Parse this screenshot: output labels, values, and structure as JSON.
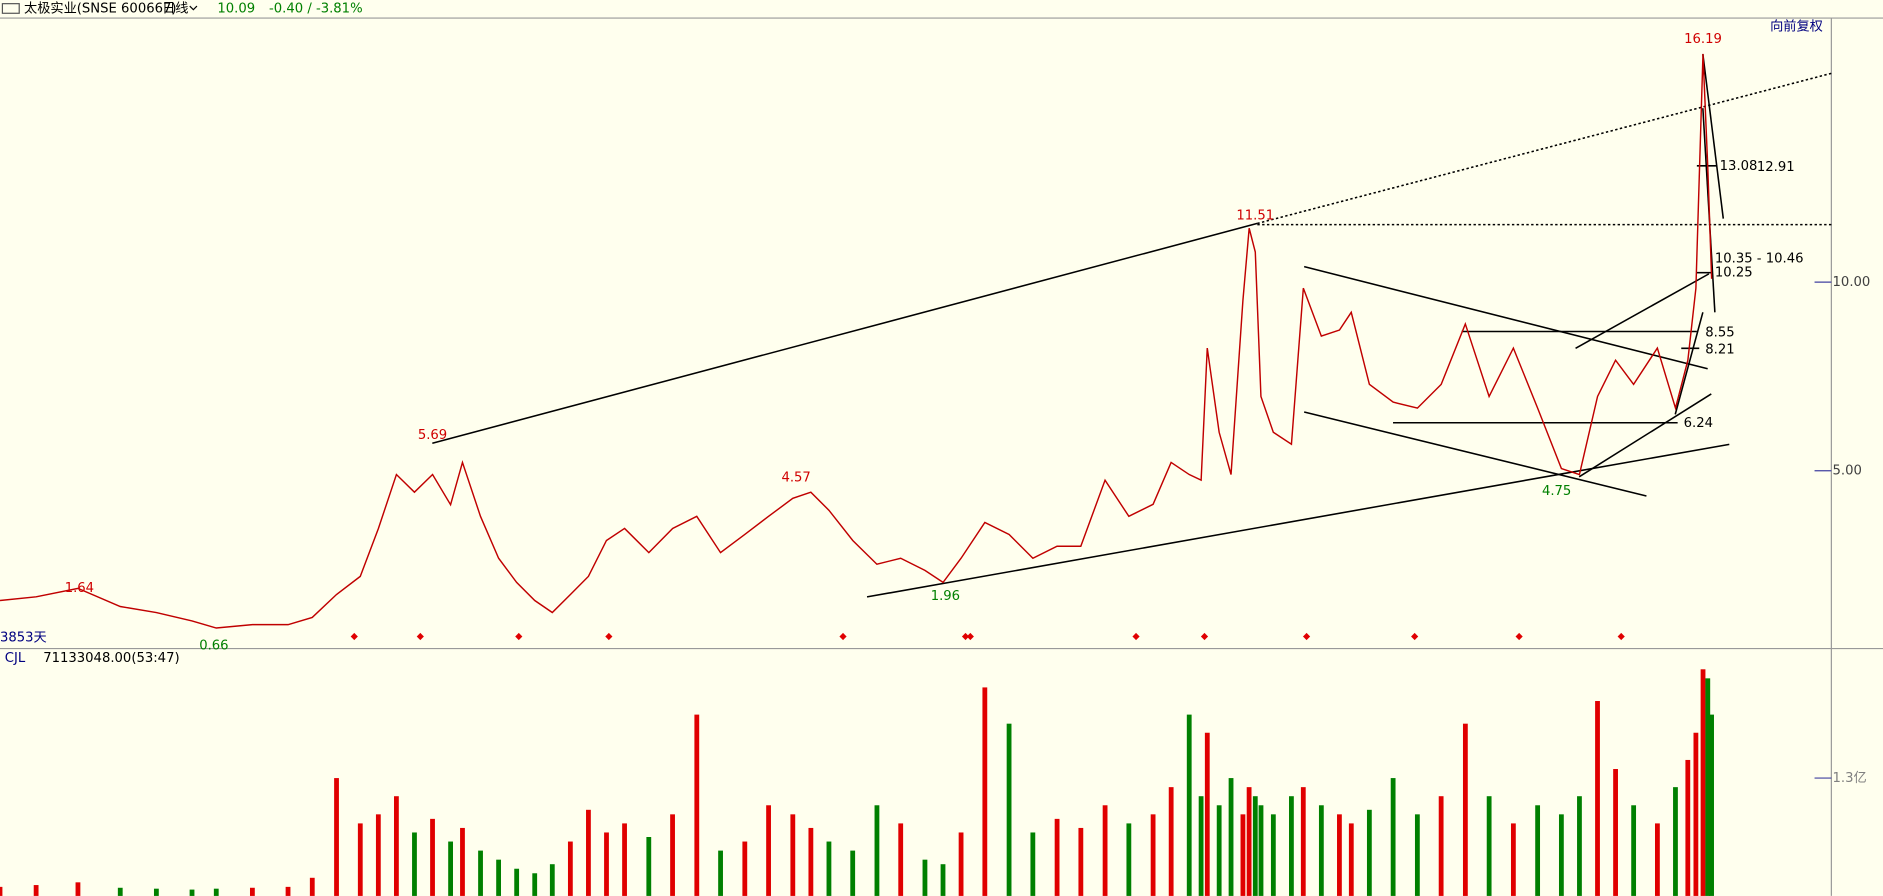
{
  "header": {
    "stock": "太极实业(SNSE 600667)",
    "period": "日线",
    "price": 10.09,
    "change": "-0.40 / -3.81%",
    "adjust": "向前复权",
    "span": "3853天"
  },
  "chart_data": [
    {
      "type": "line",
      "color": "#c00000",
      "up_color": "#e00000",
      "down_color": "#008000",
      "x": [
        0,
        76,
        164,
        253,
        329,
        404,
        455,
        531,
        606,
        657,
        708,
        758,
        796,
        834,
        872,
        910,
        948,
        973,
        1011,
        1049,
        1087,
        1125,
        1162,
        1200,
        1238,
        1276,
        1314,
        1365,
        1415,
        1466,
        1516,
        1567,
        1617,
        1668,
        1706,
        1744,
        1794,
        1845,
        1895,
        1946,
        1984,
        2022,
        2072,
        2123,
        2173,
        2224,
        2274,
        2325,
        2375,
        2426,
        2464,
        2502,
        2527,
        2540,
        2565,
        2590,
        2615,
        2628,
        2641,
        2653,
        2679,
        2717,
        2742,
        2780,
        2818,
        2843,
        2881,
        2931,
        2982,
        3032,
        3083,
        3133,
        3184,
        3235,
        3285,
        3323,
        3361,
        3399,
        3437,
        3487,
        3525,
        3551,
        3568,
        3583,
        3593,
        3601
      ],
      "values": [
        1.56,
        1.66,
        1.88,
        1.4,
        1.24,
        1.02,
        0.83,
        0.92,
        0.92,
        1.11,
        1.72,
        2.2,
        3.47,
        4.9,
        4.43,
        4.9,
        4.1,
        5.22,
        3.79,
        2.68,
        2.04,
        1.56,
        1.24,
        1.72,
        2.2,
        3.15,
        3.47,
        2.83,
        3.47,
        3.79,
        2.83,
        3.31,
        3.79,
        4.27,
        4.43,
        3.95,
        3.15,
        2.52,
        2.68,
        2.36,
        2.04,
        2.68,
        3.63,
        3.31,
        2.68,
        3.0,
        3.0,
        4.75,
        3.79,
        4.11,
        5.22,
        4.9,
        4.75,
        8.25,
        6.02,
        4.9,
        9.52,
        11.43,
        10.8,
        6.97,
        6.02,
        5.7,
        9.84,
        8.57,
        8.73,
        9.2,
        7.29,
        6.82,
        6.66,
        7.29,
        8.89,
        6.97,
        8.25,
        6.66,
        5.06,
        4.9,
        6.97,
        7.93,
        7.29,
        8.25,
        6.66,
        7.93,
        9.84,
        16.05,
        13.03,
        10.09
      ],
      "xlim": [
        0,
        3853
      ],
      "ylim": [
        0.35,
        17
      ],
      "yticks": [
        {
          "value": 10,
          "label": "10.00"
        },
        {
          "value": 5,
          "label": "5.00"
        }
      ],
      "grid": false,
      "price_labels": [
        {
          "x": 3583,
          "value": 16.19,
          "color": "#d00000"
        },
        {
          "x": 2641,
          "value": 11.51,
          "color": "#d00000"
        },
        {
          "x": 910,
          "value": 5.69,
          "color": "#d00000"
        },
        {
          "x": 1675,
          "value": 4.57,
          "color": "#d00000"
        },
        {
          "x": 167,
          "value": 1.64,
          "color": "#d00000"
        },
        {
          "x": 450,
          "value": 0.66,
          "color": "#008000"
        },
        {
          "x": 1989,
          "value": 1.96,
          "color": "#008000"
        },
        {
          "x": 3275,
          "value": 4.75,
          "color": "#008000"
        }
      ],
      "level_labels": [
        "13.08",
        "12.91",
        "10.35 - 10.46",
        "10.25",
        "8.55",
        "8.21",
        "6.24"
      ]
    },
    {
      "type": "bar",
      "title": "CJL",
      "subtitle": "71133048.00(53:47)",
      "x": [
        0,
        76,
        164,
        253,
        329,
        404,
        455,
        531,
        606,
        657,
        708,
        758,
        796,
        834,
        872,
        910,
        948,
        973,
        1011,
        1049,
        1087,
        1125,
        1162,
        1200,
        1238,
        1276,
        1314,
        1365,
        1415,
        1466,
        1516,
        1567,
        1617,
        1668,
        1706,
        1744,
        1794,
        1845,
        1895,
        1946,
        1984,
        2022,
        2072,
        2123,
        2173,
        2224,
        2274,
        2325,
        2375,
        2426,
        2464,
        2502,
        2527,
        2540,
        2565,
        2590,
        2615,
        2628,
        2641,
        2653,
        2679,
        2717,
        2742,
        2780,
        2818,
        2843,
        2881,
        2931,
        2982,
        3032,
        3083,
        3133,
        3184,
        3235,
        3285,
        3323,
        3361,
        3399,
        3437,
        3487,
        3525,
        3551,
        3568,
        3583,
        3593,
        3601
      ],
      "values": [
        10000000,
        12000000,
        15000000,
        9000000,
        8000000,
        7000000,
        8000000,
        9000000,
        10000000,
        20000000,
        130000000,
        80000000,
        90000000,
        110000000,
        70000000,
        85000000,
        60000000,
        75000000,
        50000000,
        40000000,
        30000000,
        25000000,
        35000000,
        60000000,
        95000000,
        70000000,
        80000000,
        65000000,
        90000000,
        200000000,
        50000000,
        60000000,
        100000000,
        90000000,
        75000000,
        60000000,
        50000000,
        100000000,
        80000000,
        40000000,
        35000000,
        70000000,
        230000000,
        190000000,
        70000000,
        85000000,
        75000000,
        100000000,
        80000000,
        90000000,
        120000000,
        200000000,
        110000000,
        180000000,
        100000000,
        130000000,
        90000000,
        120000000,
        110000000,
        100000000,
        90000000,
        110000000,
        120000000,
        100000000,
        90000000,
        80000000,
        95000000,
        130000000,
        90000000,
        110000000,
        190000000,
        110000000,
        80000000,
        100000000,
        90000000,
        110000000,
        215000000,
        140000000,
        100000000,
        80000000,
        120000000,
        150000000,
        180000000,
        250000000,
        240000000,
        200000000
      ],
      "xlim": [
        0,
        3853
      ],
      "ylim": [
        0,
        253000000
      ],
      "yticks": [
        {
          "value": 130000000,
          "label": "1.3亿"
        }
      ]
    }
  ]
}
